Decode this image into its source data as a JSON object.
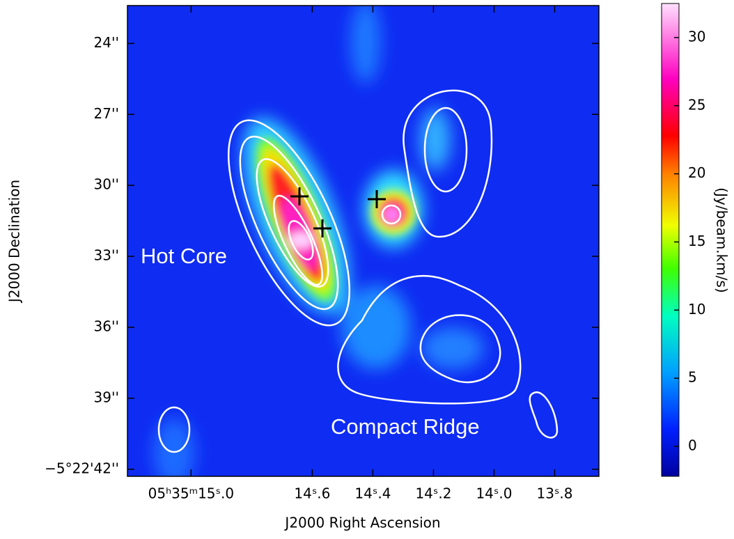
{
  "chart_data": {
    "type": "image",
    "xlabel": "J2000 Right Ascension",
    "ylabel": "J2000 Declination",
    "colorbar_label": "(Jy/beam.km/s)",
    "annotations": [
      "Hot Core",
      "Compact Ridge"
    ],
    "xlim": [
      15.21,
      13.654
    ],
    "xticks": [
      {
        "value": 15.0,
        "label": "05ʰ35ᵐ15ˢ.0"
      },
      {
        "value": 14.6,
        "label": "14ˢ.6"
      },
      {
        "value": 14.4,
        "label": "14ˢ.4"
      },
      {
        "value": 14.2,
        "label": "14ˢ.2"
      },
      {
        "value": 14.0,
        "label": "14ˢ.0"
      },
      {
        "value": 13.8,
        "label": "13ˢ.8"
      }
    ],
    "ylim": [
      22.4,
      42.3
    ],
    "yticks": [
      {
        "value": 24,
        "label": "24''"
      },
      {
        "value": 27,
        "label": "27''"
      },
      {
        "value": 30,
        "label": "30''"
      },
      {
        "value": 33,
        "label": "33''"
      },
      {
        "value": 36,
        "label": "36''"
      },
      {
        "value": 39,
        "label": "39''"
      },
      {
        "value": 42,
        "label": "−5°22'42''"
      }
    ],
    "clim": [
      -2.2,
      32.5
    ],
    "cticks": [
      0,
      5,
      10,
      15,
      20,
      25,
      30
    ]
  }
}
